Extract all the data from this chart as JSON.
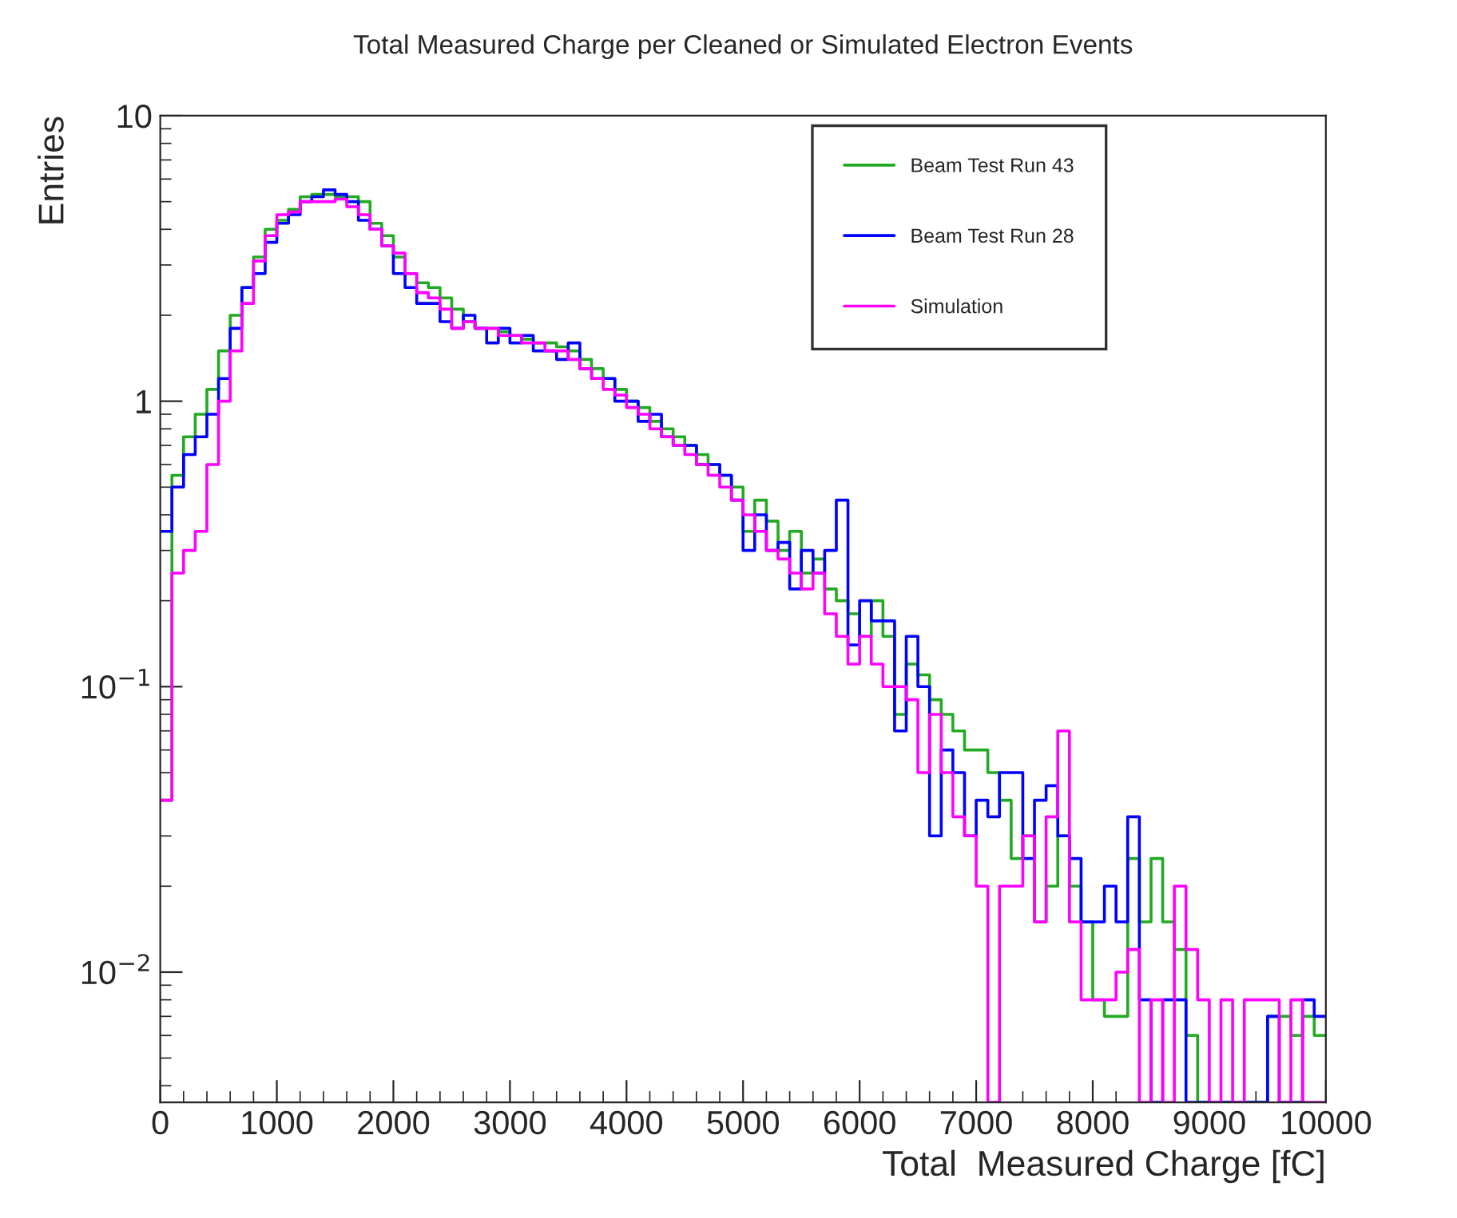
{
  "chart_data": {
    "type": "histogram",
    "title": "Total Measured Charge per Cleaned or Simulated Electron Events",
    "xlabel": "Total  Measured Charge [fC]",
    "ylabel": "Entries",
    "bins": [
      0,
      100,
      200,
      300,
      400,
      500,
      600,
      700,
      800,
      900,
      1000,
      1100,
      1200,
      1300,
      1400,
      1500,
      1600,
      1700,
      1800,
      1900,
      2000,
      2100,
      2200,
      2300,
      2400,
      2500,
      2600,
      2700,
      2800,
      2900,
      3000,
      3100,
      3200,
      3300,
      3400,
      3500,
      3600,
      3700,
      3800,
      3900,
      4000,
      4100,
      4200,
      4300,
      4400,
      4500,
      4600,
      4700,
      4800,
      4900,
      5000,
      5100,
      5200,
      5300,
      5400,
      5500,
      5600,
      5700,
      5800,
      5900,
      6000,
      6100,
      6200,
      6300,
      6400,
      6500,
      6600,
      6700,
      6800,
      6900,
      7000,
      7100,
      7200,
      7300,
      7400,
      7500,
      7600,
      7700,
      7800,
      7900,
      8000,
      8100,
      8200,
      8300,
      8400,
      8500,
      8600,
      8700,
      8800,
      8900,
      9000,
      9100,
      9200,
      9300,
      9400,
      9500,
      9600,
      9700,
      9800,
      9900,
      10000
    ],
    "series": [
      {
        "name": "Beam Test Run 43",
        "color": "#22aa22",
        "values": [
          0.04,
          0.55,
          0.75,
          0.9,
          1.1,
          1.5,
          2.0,
          2.5,
          3.2,
          4.0,
          4.3,
          4.7,
          5.2,
          5.3,
          5.3,
          5.2,
          5.2,
          5.0,
          4.2,
          3.8,
          3.2,
          2.8,
          2.6,
          2.5,
          2.3,
          2.1,
          1.9,
          1.8,
          1.8,
          1.75,
          1.7,
          1.65,
          1.6,
          1.6,
          1.55,
          1.5,
          1.4,
          1.3,
          1.2,
          1.1,
          1.0,
          0.95,
          0.85,
          0.8,
          0.75,
          0.7,
          0.65,
          0.6,
          0.55,
          0.5,
          0.35,
          0.45,
          0.38,
          0.3,
          0.35,
          0.25,
          0.28,
          0.22,
          0.2,
          0.18,
          0.15,
          0.2,
          0.15,
          0.08,
          0.12,
          0.11,
          0.09,
          0.08,
          0.07,
          0.06,
          0.06,
          0.05,
          0.04,
          0.025,
          0.03,
          0.015,
          0.02,
          0.03,
          0.02,
          0.015,
          0.008,
          0.007,
          0.007,
          0.025,
          0.015,
          0.025,
          0.015,
          0.012,
          0.006,
          null,
          null,
          null,
          null,
          null,
          null,
          0.007,
          0.007,
          0.006,
          0.007,
          0.006
        ]
      },
      {
        "name": "Beam Test Run 28",
        "color": "#0000ff",
        "values": [
          0.35,
          0.5,
          0.65,
          0.75,
          0.9,
          1.2,
          1.8,
          2.5,
          2.8,
          3.6,
          4.2,
          4.5,
          5.0,
          5.2,
          5.5,
          5.3,
          5.0,
          4.3,
          4.0,
          3.5,
          2.8,
          2.5,
          2.2,
          2.2,
          1.9,
          1.8,
          2.0,
          1.8,
          1.6,
          1.8,
          1.6,
          1.7,
          1.5,
          1.5,
          1.4,
          1.6,
          1.3,
          1.2,
          1.2,
          1.0,
          1.0,
          0.85,
          0.9,
          0.75,
          0.7,
          0.7,
          0.6,
          0.6,
          0.55,
          0.45,
          0.3,
          0.4,
          0.3,
          0.32,
          0.22,
          0.3,
          0.25,
          0.3,
          0.45,
          0.14,
          0.2,
          0.17,
          0.17,
          0.07,
          0.15,
          0.1,
          0.03,
          0.06,
          0.05,
          0.03,
          0.04,
          0.035,
          0.05,
          0.05,
          0.025,
          0.04,
          0.045,
          0.03,
          0.025,
          0.015,
          0.015,
          0.02,
          0.015,
          0.035,
          0.008,
          null,
          0.008,
          0.008,
          null,
          null,
          null,
          null,
          null,
          null,
          null,
          0.007,
          null,
          null,
          0.008,
          0.007
        ]
      },
      {
        "name": "Simulation",
        "color": "#ff00ff",
        "values": [
          0.04,
          0.25,
          0.3,
          0.35,
          0.6,
          1.0,
          1.5,
          2.2,
          3.1,
          3.8,
          4.5,
          4.6,
          5.0,
          5.0,
          5.0,
          5.1,
          4.8,
          4.5,
          4.0,
          3.5,
          3.3,
          2.8,
          2.4,
          2.3,
          2.1,
          1.8,
          1.9,
          1.8,
          1.8,
          1.7,
          1.7,
          1.6,
          1.6,
          1.5,
          1.5,
          1.4,
          1.3,
          1.2,
          1.1,
          1.05,
          0.95,
          0.9,
          0.8,
          0.75,
          0.7,
          0.65,
          0.6,
          0.55,
          0.5,
          0.45,
          0.4,
          0.35,
          0.3,
          0.28,
          0.25,
          0.22,
          0.25,
          0.18,
          0.15,
          0.12,
          0.15,
          0.12,
          0.1,
          0.1,
          0.09,
          0.05,
          0.08,
          0.05,
          0.035,
          0.03,
          0.02,
          null,
          0.02,
          0.02,
          0.03,
          0.015,
          0.035,
          0.07,
          0.015,
          0.008,
          0.008,
          0.008,
          0.01,
          0.012,
          null,
          0.008,
          null,
          0.02,
          0.012,
          0.008,
          null,
          0.008,
          null,
          0.008,
          0.008,
          0.008,
          null,
          0.008,
          null,
          null
        ]
      }
    ],
    "log": "y",
    "xlim": [
      0,
      10000
    ],
    "ylim": [
      0.0035,
      10
    ],
    "xticks": [
      0,
      1000,
      2000,
      3000,
      4000,
      5000,
      6000,
      7000,
      8000,
      9000,
      10000
    ],
    "yticks": [
      {
        "value": 0.01,
        "label": "10$^{−2}$"
      },
      {
        "value": 0.1,
        "label": "10$^{−1}$"
      },
      1,
      10
    ],
    "legend": "top right",
    "grid": false
  }
}
